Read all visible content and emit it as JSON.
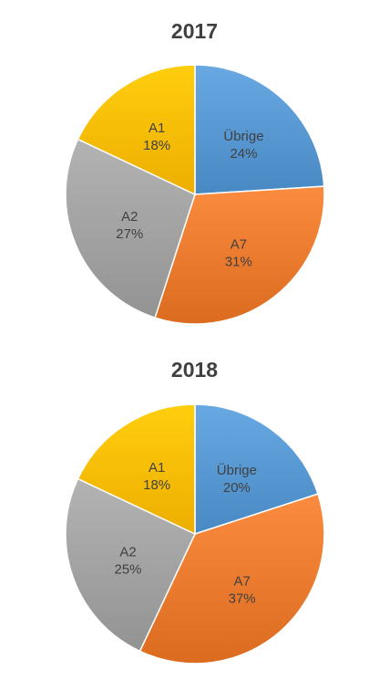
{
  "chart_data": [
    {
      "type": "pie",
      "title": "2017",
      "start_angle_deg": 0,
      "direction": "clockwise",
      "slices": [
        {
          "label": "Übrige",
          "value": 24,
          "value_label": "24%",
          "color": "#5B9BD5"
        },
        {
          "label": "A7",
          "value": 31,
          "value_label": "31%",
          "color": "#ED7D31"
        },
        {
          "label": "A2",
          "value": 27,
          "value_label": "27%",
          "color": "#A5A5A5"
        },
        {
          "label": "A1",
          "value": 18,
          "value_label": "18%",
          "color": "#FFC000"
        }
      ]
    },
    {
      "type": "pie",
      "title": "2018",
      "start_angle_deg": 0,
      "direction": "clockwise",
      "slices": [
        {
          "label": "Übrige",
          "value": 20,
          "value_label": "20%",
          "color": "#5B9BD5"
        },
        {
          "label": "A7",
          "value": 37,
          "value_label": "37%",
          "color": "#ED7D31"
        },
        {
          "label": "A2",
          "value": 25,
          "value_label": "25%",
          "color": "#A5A5A5"
        },
        {
          "label": "A1",
          "value": 18,
          "value_label": "18%",
          "color": "#FFC000"
        }
      ]
    }
  ]
}
